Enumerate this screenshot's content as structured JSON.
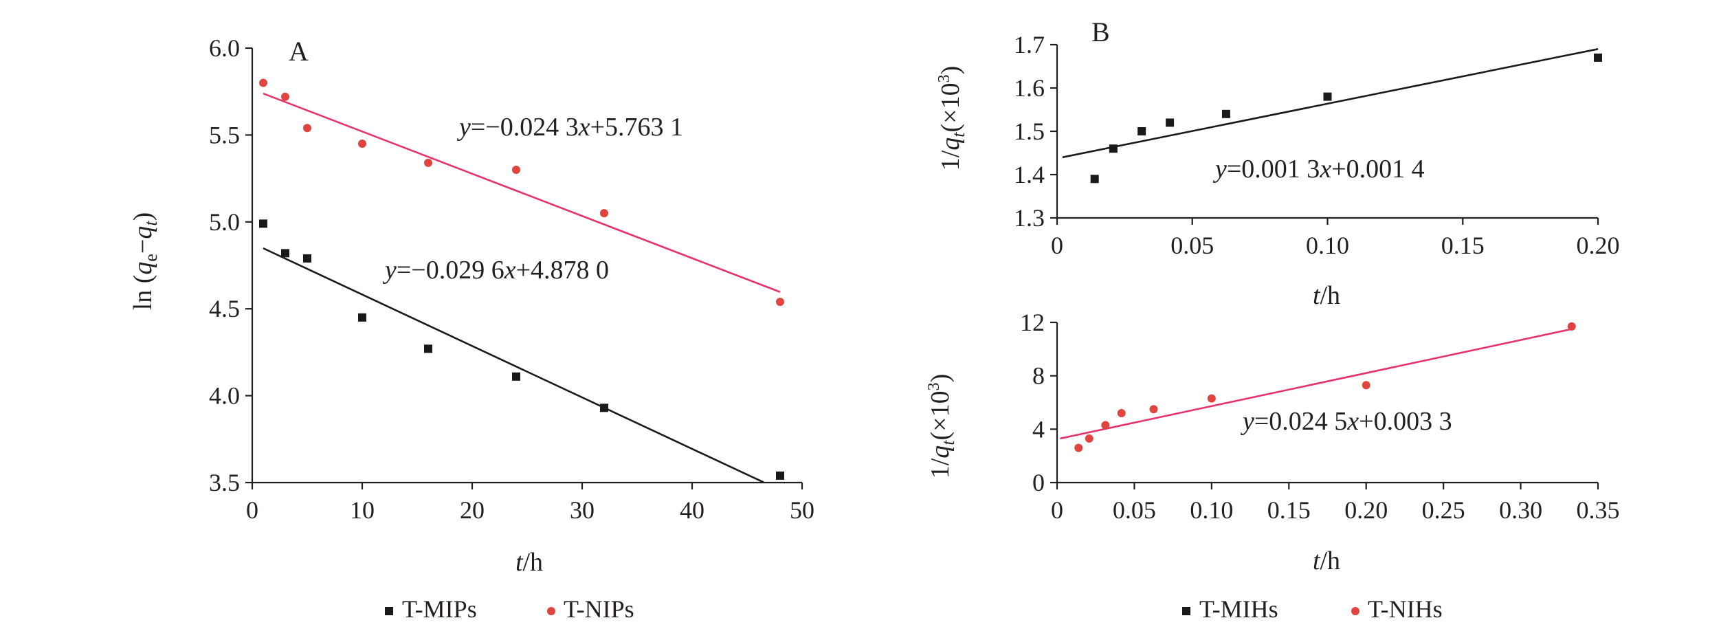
{
  "colors": {
    "black_series": "#1a1a1a",
    "red_series": "#e6336b",
    "red_marker": "#e0443e",
    "axis": "#231f20"
  },
  "chart_data": [
    {
      "id": "A",
      "type": "scatter",
      "panel_label": "A",
      "ylabel_parts": {
        "pre": "ln (",
        "q1": "q",
        "sub1": "e",
        "mid": "−",
        "q2": "q",
        "sub2": "t",
        "post": ")"
      },
      "xlabel_parts": {
        "var": "t",
        "unit": "/h"
      },
      "xlim": [
        0,
        50
      ],
      "ylim": [
        3.5,
        6.0
      ],
      "xticks": [
        "0",
        "10",
        "20",
        "30",
        "40",
        "50"
      ],
      "yticks": [
        "3.5",
        "4.0",
        "4.5",
        "5.0",
        "5.5",
        "6.0"
      ],
      "series": [
        {
          "name": "T-MIPs",
          "marker": "square",
          "color": "#1a1a1a",
          "x": [
            1,
            3,
            5,
            10,
            16,
            24,
            32,
            48
          ],
          "y": [
            4.99,
            4.82,
            4.79,
            4.45,
            4.27,
            4.11,
            3.93,
            3.54
          ],
          "fit": {
            "slope": -0.0296,
            "intercept": 4.878,
            "x_range": [
              1,
              46.5
            ]
          },
          "equation": {
            "y": "y",
            "text1": "=−0.029 6",
            "x": "x",
            "text2": "+4.878 0"
          }
        },
        {
          "name": "T-NIPs",
          "marker": "circle",
          "color": "#e0443e",
          "line_color": "#e6336b",
          "x": [
            1,
            3,
            5,
            10,
            16,
            24,
            32,
            48
          ],
          "y": [
            5.8,
            5.72,
            5.54,
            5.45,
            5.34,
            5.3,
            5.05,
            4.54
          ],
          "fit": {
            "slope": -0.0243,
            "intercept": 5.7631,
            "x_range": [
              1,
              48
            ]
          },
          "equation": {
            "y": "y",
            "text1": "=−0.024 3",
            "x": "x",
            "text2": "+5.763 1"
          }
        }
      ],
      "legend": [
        "T-MIPs",
        "T-NIPs"
      ]
    },
    {
      "id": "B-top",
      "type": "scatter",
      "panel_label": "B",
      "ylabel_parts": {
        "pre": "1/",
        "q": "q",
        "sub": "t",
        "paren": "(×10",
        "sup": "3",
        "close": ")"
      },
      "xlabel_parts": {
        "var": "t",
        "unit": "/h"
      },
      "xlim": [
        0,
        0.2
      ],
      "ylim": [
        1.3,
        1.7
      ],
      "xticks": [
        "0",
        "0.05",
        "0.10",
        "0.15",
        "0.20"
      ],
      "yticks": [
        "1.3",
        "1.4",
        "1.5",
        "1.6",
        "1.7"
      ],
      "series": [
        {
          "name": "T-MIHs",
          "marker": "square",
          "color": "#1a1a1a",
          "x": [
            0.0139,
            0.0208,
            0.0313,
            0.0417,
            0.0625,
            0.1,
            0.2
          ],
          "y": [
            1.39,
            1.46,
            1.5,
            1.52,
            1.54,
            1.58,
            1.67
          ],
          "fit": {
            "y0": 1.44,
            "y1": 1.69,
            "x_range": [
              0.002,
              0.2
            ]
          },
          "equation": {
            "y": "y",
            "text1": "=0.001 3",
            "x": "x",
            "text2": "+0.001 4"
          }
        }
      ]
    },
    {
      "id": "B-bottom",
      "type": "scatter",
      "ylabel_parts": {
        "pre": "1/",
        "q": "q",
        "sub": "t",
        "paren": "(×10",
        "sup": "3",
        "close": ")"
      },
      "xlabel_parts": {
        "var": "t",
        "unit": "/h"
      },
      "xlim": [
        0,
        0.35
      ],
      "ylim": [
        0,
        12
      ],
      "xticks": [
        "0",
        "0.05",
        "0.10",
        "0.15",
        "0.20",
        "0.25",
        "0.30",
        "0.35"
      ],
      "yticks": [
        "0",
        "4",
        "8",
        "12"
      ],
      "series": [
        {
          "name": "T-NIHs",
          "marker": "circle",
          "color": "#e0443e",
          "line_color": "#e6336b",
          "x": [
            0.0139,
            0.0208,
            0.0313,
            0.0417,
            0.0625,
            0.1,
            0.2,
            0.333
          ],
          "y": [
            2.6,
            3.3,
            4.3,
            5.2,
            5.5,
            6.3,
            7.3,
            11.7
          ],
          "fit": {
            "y0": 3.3,
            "y1": 11.5,
            "x_range": [
              0.002,
              0.333
            ]
          },
          "equation": {
            "y": "y",
            "text1": "=0.024 5",
            "x": "x",
            "text2": "+0.003 3"
          }
        }
      ],
      "legend": [
        "T-MIHs",
        "T-NIHs"
      ]
    }
  ]
}
